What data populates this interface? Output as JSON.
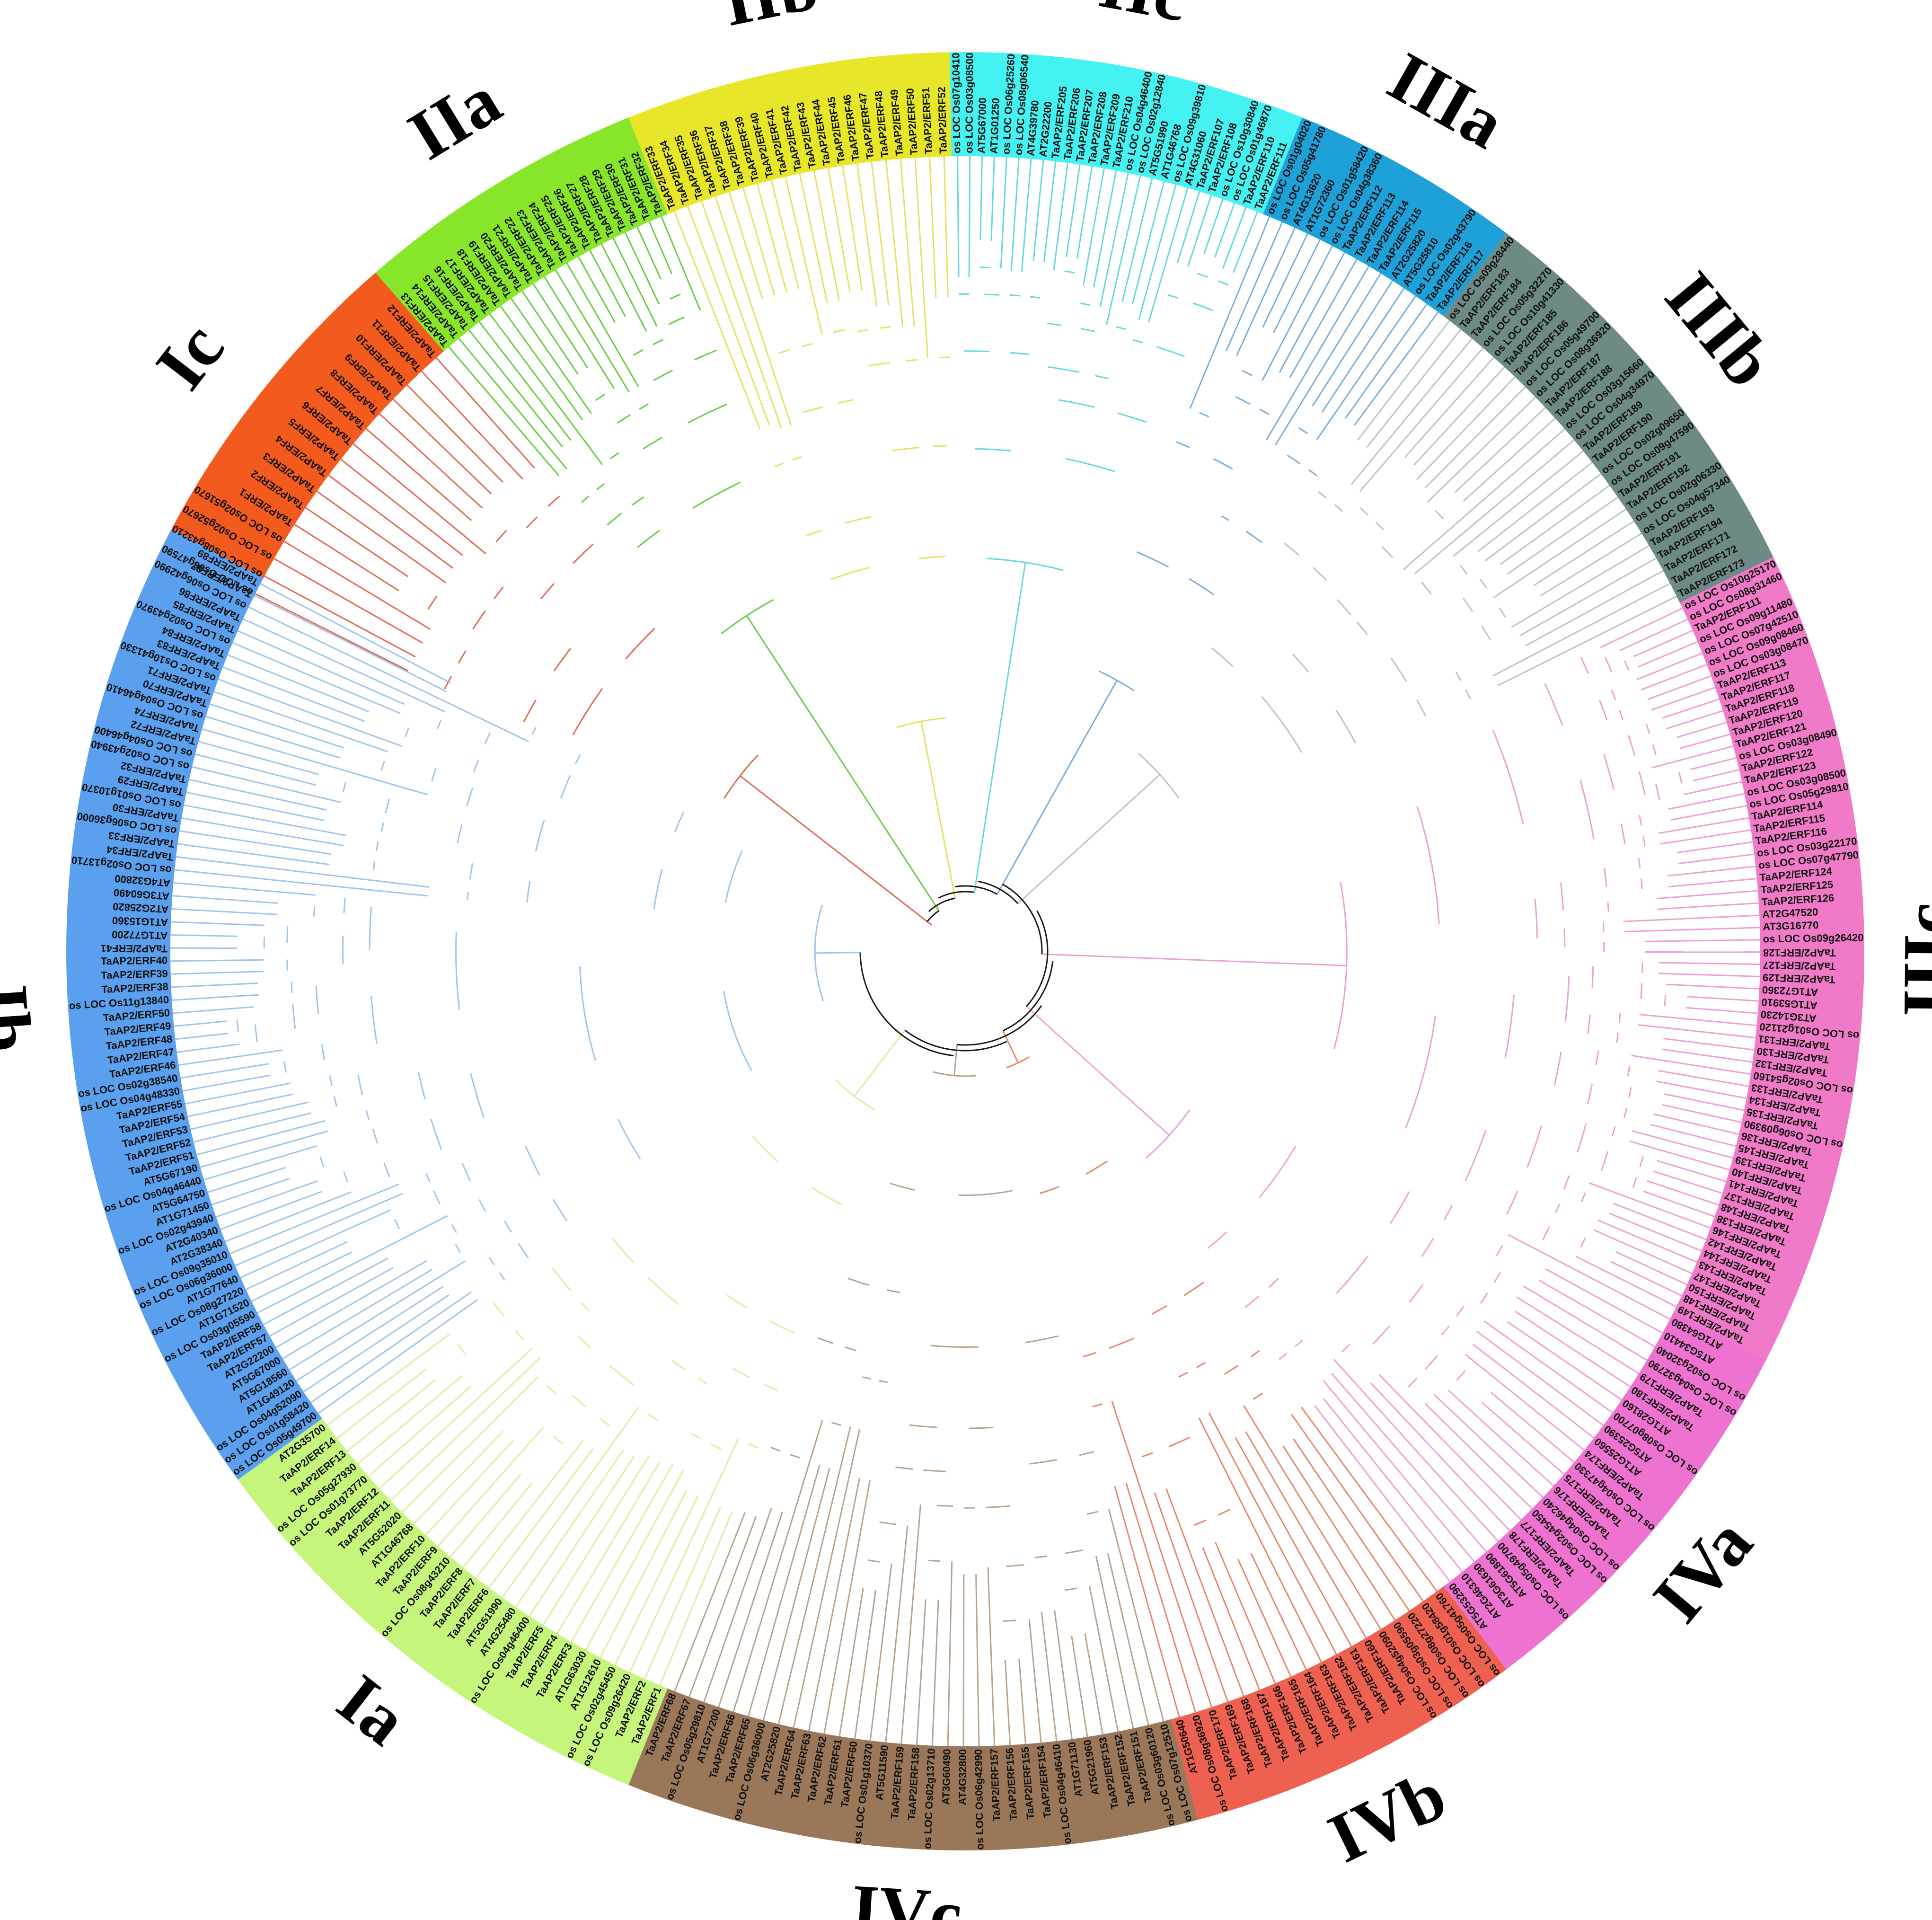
{
  "diagram": {
    "type": "circular-phylogenetic-tree",
    "center_branch_color": "#1a1a1a",
    "clades": [
      {
        "id": "Ic",
        "label": "Ic",
        "color": "#f25a1e",
        "branch_color": "#e06a55",
        "start_deg": -64,
        "end_deg": -41,
        "leaves": [
          "os LOC Os06g47590",
          "os LOC Os08g43210",
          "os LOC Os02g52670",
          "os LOC Os02g51670",
          "TaAP2/ERF1",
          "TaAP2/ERF2",
          "TaAP2/ERF3",
          "TaAP2/ERF4",
          "TaAP2/ERF5",
          "TaAP2/ERF6",
          "TaAP2/ERF7",
          "TaAP2/ERF8",
          "TaAP2/ERF9",
          "TaAP2/ERF10",
          "TaAP2/ERF11",
          "TaAP2/ERF12"
        ]
      },
      {
        "id": "IIa",
        "label": "IIa",
        "color": "#88e62a",
        "branch_color": "#66cc44",
        "start_deg": -41,
        "end_deg": -22,
        "leaves": [
          "TaAP2/ERF13",
          "TaAP2/ERF14",
          "TaAP2/ERF15",
          "TaAP2/ERF16",
          "TaAP2/ERF17",
          "TaAP2/ERF18",
          "TaAP2/ERF19",
          "TaAP2/ERF20",
          "TaAP2/ERF21",
          "TaAP2/ERF22",
          "TaAP2/ERF23",
          "TaAP2/ERF24",
          "TaAP2/ERF25",
          "TaAP2/ERF26",
          "TaAP2/ERF27",
          "TaAP2/ERF28",
          "TaAP2/ERF29",
          "TaAP2/ERF30",
          "TaAP2/ERF31",
          "TaAP2/ERF32"
        ]
      },
      {
        "id": "IIb",
        "label": "IIb",
        "color": "#e8e629",
        "branch_color": "#e8e060",
        "start_deg": -22,
        "end_deg": -1,
        "leaves": [
          "TaAP2/ERF33",
          "TaAP2/ERF34",
          "TaAP2/ERF35",
          "TaAP2/ERF36",
          "TaAP2/ERF37",
          "TaAP2/ERF38",
          "TaAP2/ERF39",
          "TaAP2/ERF40",
          "TaAP2/ERF41",
          "TaAP2/ERF42",
          "TaAP2/ERF43",
          "TaAP2/ERF44",
          "TaAP2/ERF45",
          "TaAP2/ERF46",
          "TaAP2/ERF47",
          "TaAP2/ERF48",
          "TaAP2/ERF49",
          "TaAP2/ERF50",
          "TaAP2/ERF51",
          "TaAP2/ERF52"
        ]
      },
      {
        "id": "IIc",
        "label": "IIc",
        "color": "#45f2f2",
        "branch_color": "#66d8dd",
        "start_deg": -1,
        "end_deg": 22,
        "leaves": [
          "os LOC Os07g10410",
          "os LOC Os03g08500",
          "AT5G67000",
          "AT1G01250",
          "os LOC Os06g25260",
          "os LOC Os08g06540",
          "AT4G39780",
          "AT2G22200",
          "TaAP2/ERF205",
          "TaAP2/ERF206",
          "TaAP2/ERF207",
          "TaAP2/ERF208",
          "TaAP2/ERF209",
          "TaAP2/ERF210",
          "os LOC Os04g46400",
          "os LOC Os02g12840",
          "AT5G51990",
          "AT1G46768",
          "os LOC Os09g39810",
          "AT4G31060",
          "TaAP2/ERF107",
          "TaAP2/ERF108",
          "os LOC Os10g30840",
          "os LOC Os01g46870",
          "TaAP2/ERF110",
          "TaAP2/ERF111"
        ]
      },
      {
        "id": "IIIa",
        "label": "IIIa",
        "color": "#1ea0d9",
        "branch_color": "#7aaed8",
        "start_deg": 22,
        "end_deg": 37,
        "leaves": [
          "os LOC Os01g04020",
          "os LOC Os05g41780",
          "AT4G13620",
          "AT1G72360",
          "os LOC Os01g58420",
          "os LOC Os04g38360",
          "TaAP2/ERF112",
          "TaAP2/ERF113",
          "TaAP2/ERF114",
          "TaAP2/ERF115",
          "AT2G25820",
          "AT5G25810",
          "os LOC Os02g43790",
          "TaAP2/ERF116",
          "TaAP2/ERF117"
        ]
      },
      {
        "id": "IIIb",
        "label": "IIIb",
        "color": "#6e8a86",
        "branch_color": "#b7c5c3",
        "start_deg": 37,
        "end_deg": 64,
        "leaves": [
          "os LOC Os09g28440",
          "TaAP2/ERF183",
          "TaAP2/ERF184",
          "os LOC Os05g32270",
          "os LOC Os10g41330",
          "TaAP2/ERF185",
          "TaAP2/ERF186",
          "os LOC Os05g49700",
          "os LOC Os08g36920",
          "TaAP2/ERF187",
          "TaAP2/ERF188",
          "os LOC Os03g15660",
          "os LOC Os04g34970",
          "TaAP2/ERF189",
          "TaAP2/ERF190",
          "os LOC Os02g09650",
          "os LOC Os09g47590",
          "TaAP2/ERF191",
          "TaAP2/ERF192",
          "os LOC Os02g06330",
          "os LOC Os04g57340",
          "TaAP2/ERF193",
          "TaAP2/ERF194",
          "TaAP2/ERF171",
          "TaAP2/ERF172",
          "TaAP2/ERF173"
        ]
      },
      {
        "id": "IIIc",
        "label": "IIIc",
        "color": "#f07ac8",
        "branch_color": "#ee9fd4",
        "start_deg": 64,
        "end_deg": 117,
        "leaves": [
          "os LOC Os10g25170",
          "os LOC Os08g31460",
          "TaAP2/ERF111",
          "os LOC Os09g11480",
          "os LOC Os07g42510",
          "os LOC Os09g08460",
          "os LOC Os03g08470",
          "TaAP2/ERF113",
          "TaAP2/ERF117",
          "TaAP2/ERF118",
          "TaAP2/ERF119",
          "TaAP2/ERF120",
          "TaAP2/ERF121",
          "os LOC Os03g08490",
          "TaAP2/ERF122",
          "TaAP2/ERF123",
          "os LOC Os03g08500",
          "os LOC Os05g29810",
          "TaAP2/ERF114",
          "TaAP2/ERF115",
          "TaAP2/ERF116",
          "os LOC Os03g22170",
          "os LOC Os07g47790",
          "TaAP2/ERF124",
          "TaAP2/ERF125",
          "TaAP2/ERF126",
          "AT2G47520",
          "AT3G16770",
          "os LOC Os09g26420",
          "TaAP2/ERF128",
          "TaAP2/ERF127",
          "TaAP2/ERF129",
          "AT1G72360",
          "AT1G53910",
          "AT3G14230",
          "os LOC Os01g21120",
          "TaAP2/ERF131",
          "TaAP2/ERF130",
          "TaAP2/ERF132",
          "os LOC Os02g54160",
          "TaAP2/ERF133",
          "TaAP2/ERF134",
          "TaAP2/ERF135",
          "os LOC Os06g09390",
          "TaAP2/ERF136",
          "TaAP2/ERF145",
          "TaAP2/ERF139",
          "TaAP2/ERF140",
          "TaAP2/ERF141",
          "TaAP2/ERF137",
          "TaAP2/ERF148",
          "TaAP2/ERF138",
          "TaAP2/ERF146",
          "TaAP2/ERF142",
          "TaAP2/ERF144",
          "TaAP2/ERF143",
          "TaAP2/ERF147",
          "TaAP2/ERF150",
          "TaAP2/ERF148",
          "TaAP2/ERF149"
        ]
      },
      {
        "id": "IVa",
        "label": "IVa",
        "color": "#ee72d0",
        "branch_color": "#ee9fd4",
        "start_deg": 117,
        "end_deg": 143,
        "leaves": [
          "AT1G64380",
          "AT5G34410",
          "os LOC Os02g32040",
          "os LOC Os04g32790",
          "TaAP2/ERF179",
          "TaAP2/ERF180",
          "AT1G28160",
          "os LOC Os08g07700",
          "AT5G25390",
          "AT1G25560",
          "TaAP2/ERF174",
          "os LOC Os04g47330",
          "TaAP2/ERF175",
          "TaAP2/ERF176",
          "os LOC Os04g46240",
          "os LOC Os02g45450",
          "TaAP2/ERF177",
          "TaAP2/ERF178",
          "os LOC Os05g49700",
          "AT5G61890",
          "AT3G61630",
          "AT2G46310",
          "AT5G53290"
        ]
      },
      {
        "id": "IVb",
        "label": "IVb",
        "color": "#ee6050",
        "branch_color": "#e8866a",
        "start_deg": 143,
        "end_deg": 165,
        "leaves": [
          "os LOC Os05g41760",
          "os LOC Os01g58420",
          "os LOC Os08g27220",
          "os LOC Os03g05590",
          "os LOC Os04g52090",
          "TaAP2/ERF160",
          "TaAP2/ERF161",
          "TaAP2/ERF162",
          "TaAP2/ERF163",
          "TaAP2/ERF164",
          "TaAP2/ERF165",
          "TaAP2/ERF166",
          "TaAP2/ERF167",
          "TaAP2/ERF168",
          "TaAP2/ERF169",
          "TaAP2/ERF170",
          "os LOC Os08g36920",
          "AT1G50640"
        ]
      },
      {
        "id": "IVc",
        "label": "IVc",
        "color": "#9a7759",
        "branch_color": "#b8a390",
        "start_deg": 165,
        "end_deg": 202,
        "leaves": [
          "os LOC Os07g12510",
          "os LOC Os03g60120",
          "TaAP2/ERF151",
          "TaAP2/ERF152",
          "TaAP2/ERF153",
          "AT5G21960",
          "AT1G71130",
          "os LOC Os04g46410",
          "TaAP2/ERF154",
          "TaAP2/ERF155",
          "TaAP2/ERF156",
          "TaAP2/ERF157",
          "os LOC Os06g42990",
          "AT4G32800",
          "AT3G60490",
          "os LOC Os02g13710",
          "TaAP2/ERF158",
          "TaAP2/ERF159",
          "AT5G11590",
          "os LOC Os01g10370",
          "TaAP2/ERF60",
          "TaAP2/ERF61",
          "TaAP2/ERF62",
          "TaAP2/ERF63",
          "TaAP2/ERF64",
          "AT2G25820",
          "os LOC Os06g36000",
          "TaAP2/ERF65",
          "TaAP2/ERF66",
          "AT1G77200",
          "os LOC Os05g29810",
          "TaAP2/ERF67",
          "TaAP2/ERF68"
        ]
      },
      {
        "id": "Ia",
        "label": "Ia",
        "color": "#c5f57a",
        "branch_color": "#ddeca0",
        "start_deg": 202,
        "end_deg": 234,
        "leaves": [
          "TaAP2/ERF1",
          "TaAP2/ERF2",
          "os LOC Os09g26420",
          "os LOC Os02g45450",
          "AT1G12610",
          "AT1G63030",
          "TaAP2/ERF3",
          "TaAP2/ERF4",
          "TaAP2/ERF5",
          "os LOC Os04g46400",
          "AT4G25480",
          "AT5G51990",
          "TaAP2/ERF6",
          "TaAP2/ERF7",
          "TaAP2/ERF8",
          "os LOC Os08g43210",
          "TaAP2/ERF9",
          "TaAP2/ERF10",
          "AT1G46768",
          "AT5G52020",
          "TaAP2/ERF11",
          "TaAP2/ERF12",
          "os LOC Os01g73770",
          "os LOC Os05g27930",
          "TaAP2/ERF13",
          "TaAP2/ERF14",
          "AT2G35700"
        ]
      },
      {
        "id": "Ib",
        "label": "Ib",
        "color": "#5aa0ee",
        "branch_color": "#9ec5ec",
        "start_deg": 234,
        "end_deg": 298,
        "leaves": [
          "os LOC Os05g49700",
          "os LOC Os01g58420",
          "os LOC Os04g52090",
          "AT1G49120",
          "AT5G18560",
          "AT5G67000",
          "AT2G22200",
          "TaAP2/ERF57",
          "TaAP2/ERF58",
          "os LOC Os03g05590",
          "AT1G71520",
          "os LOC Os08g27220",
          "AT1G77640",
          "os LOC Os06g36000",
          "os LOC Os09g35010",
          "AT2G38340",
          "AT2G40340",
          "os LOC Os02g43940",
          "AT1G71450",
          "AT5G64750",
          "os LOC Os04g46440",
          "AT5G67190",
          "TaAP2/ERF51",
          "TaAP2/ERF52",
          "TaAP2/ERF53",
          "TaAP2/ERF54",
          "TaAP2/ERF55",
          "os LOC Os04g48330",
          "os LOC Os02g38540",
          "TaAP2/ERF46",
          "TaAP2/ERF47",
          "TaAP2/ERF48",
          "TaAP2/ERF49",
          "TaAP2/ERF50",
          "os LOC Os11g13840",
          "TaAP2/ERF38",
          "TaAP2/ERF39",
          "TaAP2/ERF40",
          "TaAP2/ERF41",
          "AT1G77200",
          "AT1G15360",
          "AT2G25820",
          "AT3G60490",
          "AT4G32800",
          "os LOC Os02g13710",
          "TaAP2/ERF34",
          "TaAP2/ERF33",
          "os LOC Os06g36000",
          "TaAP2/ERF30",
          "os LOC Os01g10370",
          "TaAP2/ERF29",
          "TaAP2/ERF32",
          "os LOC Os02g43940",
          "os LOC Os04g46400",
          "TaAP2/ERF72",
          "TaAP2/ERF74",
          "os LOC Os04g46410",
          "TaAP2/ERF70",
          "TaAP2/ERF71",
          "os LOC Os10g41330",
          "TaAP2/ERF83",
          "TaAP2/ERF84",
          "os LOC Os02g43970",
          "TaAP2/ERF85",
          "TaAP2/ERF86",
          "os LOC Os06g42990",
          "TaAP2/ERF87",
          "TaAP2/ERF89"
        ]
      }
    ]
  }
}
